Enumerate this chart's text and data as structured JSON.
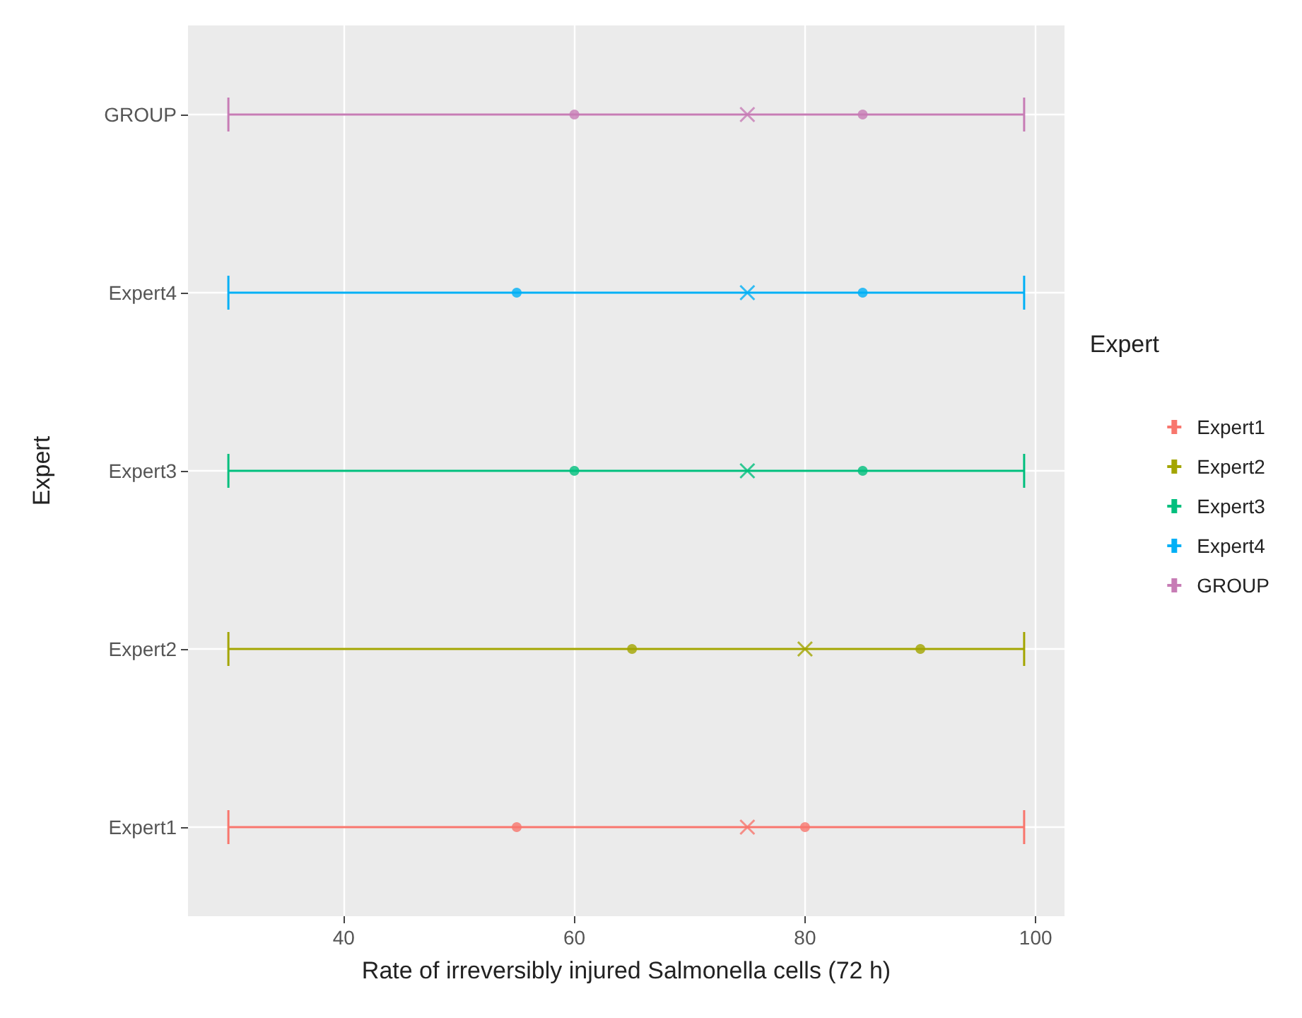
{
  "chart_data": {
    "type": "scatter",
    "orientation": "horizontal",
    "xlabel": "Rate of irreversibly injured Salmonella cells (72 h)",
    "ylabel": "Expert",
    "legend_title": "Expert",
    "legend": "right",
    "categories": [
      "GROUP",
      "Expert4",
      "Expert3",
      "Expert2",
      "Expert1"
    ],
    "xlim": [
      26.5,
      102.5
    ],
    "xticks": [
      40,
      60,
      80,
      100
    ],
    "grid": true,
    "series": [
      {
        "name": "Expert1",
        "color": "#f8766d",
        "marker": "cross",
        "values": [
          null,
          null,
          null,
          null,
          75
        ],
        "errors": [
          null,
          null,
          null,
          null,
          [
            30,
            99
          ]
        ]
      },
      {
        "name": "Expert2",
        "color": "#a3a500",
        "marker": "cross",
        "values": [
          null,
          null,
          null,
          80,
          null
        ],
        "errors": [
          null,
          null,
          null,
          [
            30,
            99
          ],
          null
        ]
      },
      {
        "name": "Expert3",
        "color": "#00bf7d",
        "marker": "cross",
        "values": [
          null,
          null,
          75,
          null,
          null
        ],
        "errors": [
          null,
          null,
          [
            30,
            99
          ],
          null,
          null
        ]
      },
      {
        "name": "Expert4",
        "color": "#00b0f6",
        "marker": "cross",
        "values": [
          null,
          75,
          null,
          null,
          null
        ],
        "errors": [
          null,
          [
            30,
            99
          ],
          null,
          null,
          null
        ]
      },
      {
        "name": "GROUP",
        "color": "#c77cb5",
        "marker": "cross",
        "values": [
          75,
          null,
          null,
          null,
          null
        ],
        "errors": [
          [
            30,
            99
          ],
          null,
          null,
          null,
          null
        ]
      },
      {
        "marker": "circle",
        "colors": [
          "#c77cb5",
          "#00b0f6",
          "#00bf7d",
          "#a3a500",
          "#f8766d"
        ],
        "values": [
          60,
          55,
          60,
          65,
          55
        ]
      },
      {
        "marker": "circle",
        "colors": [
          "#c77cb5",
          "#00b0f6",
          "#00bf7d",
          "#a3a500",
          "#f8766d"
        ],
        "values": [
          85,
          85,
          85,
          90,
          80
        ]
      }
    ]
  }
}
